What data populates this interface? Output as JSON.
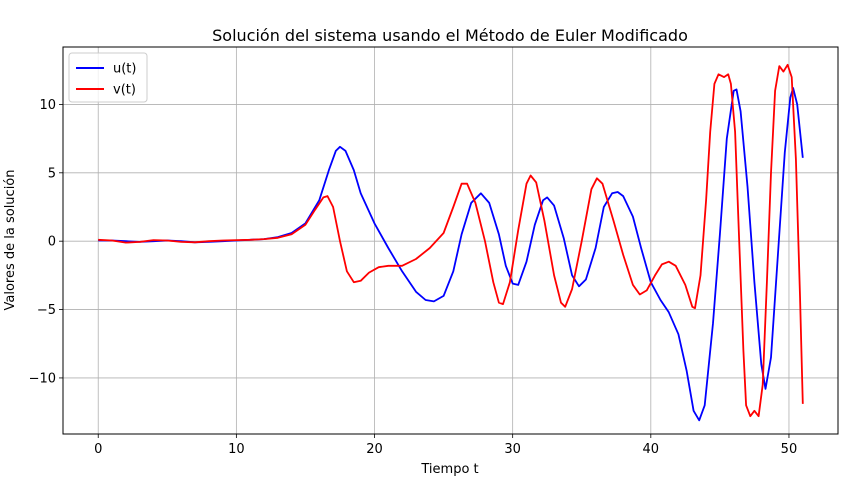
{
  "chart_data": {
    "type": "line",
    "title": "Solución del sistema usando el Método de Euler Modificado",
    "xlabel": "Tiempo t",
    "ylabel": "Valores de la solución",
    "xlim": [
      -2.55,
      53.55
    ],
    "ylim": [
      -14.1,
      14.2
    ],
    "xticks": [
      0,
      10,
      20,
      30,
      40,
      50
    ],
    "yticks": [
      -10,
      -5,
      0,
      5,
      10
    ],
    "ytick_labels": [
      "−10",
      "−5",
      "0",
      "5",
      "10"
    ],
    "grid": true,
    "legend_position": "top-left",
    "series": [
      {
        "name": "u(t)",
        "color": "#0000ff",
        "points": [
          [
            0,
            0.05
          ],
          [
            1,
            0.05
          ],
          [
            2,
            0.0
          ],
          [
            3,
            -0.05
          ],
          [
            4,
            0.0
          ],
          [
            5,
            0.05
          ],
          [
            6,
            0.0
          ],
          [
            7,
            -0.08
          ],
          [
            8,
            -0.05
          ],
          [
            9,
            0.0
          ],
          [
            10,
            0.05
          ],
          [
            11,
            0.1
          ],
          [
            12,
            0.15
          ],
          [
            13,
            0.3
          ],
          [
            14,
            0.6
          ],
          [
            15,
            1.3
          ],
          [
            16,
            3.0
          ],
          [
            16.7,
            5.2
          ],
          [
            17.2,
            6.6
          ],
          [
            17.5,
            6.9
          ],
          [
            17.9,
            6.6
          ],
          [
            18.5,
            5.2
          ],
          [
            19,
            3.5
          ],
          [
            20,
            1.3
          ],
          [
            21,
            -0.5
          ],
          [
            22,
            -2.2
          ],
          [
            23,
            -3.7
          ],
          [
            23.7,
            -4.3
          ],
          [
            24.3,
            -4.4
          ],
          [
            25,
            -4.0
          ],
          [
            25.7,
            -2.2
          ],
          [
            26.3,
            0.5
          ],
          [
            27,
            2.8
          ],
          [
            27.7,
            3.5
          ],
          [
            28.3,
            2.8
          ],
          [
            29,
            0.5
          ],
          [
            29.5,
            -1.8
          ],
          [
            30,
            -3.1
          ],
          [
            30.4,
            -3.2
          ],
          [
            31,
            -1.5
          ],
          [
            31.6,
            1.2
          ],
          [
            32.2,
            3.0
          ],
          [
            32.5,
            3.2
          ],
          [
            33,
            2.6
          ],
          [
            33.7,
            0.2
          ],
          [
            34.3,
            -2.5
          ],
          [
            34.8,
            -3.3
          ],
          [
            35.3,
            -2.8
          ],
          [
            36,
            -0.5
          ],
          [
            36.6,
            2.5
          ],
          [
            37.2,
            3.5
          ],
          [
            37.6,
            3.6
          ],
          [
            38,
            3.3
          ],
          [
            38.7,
            1.8
          ],
          [
            39.3,
            -0.5
          ],
          [
            40,
            -3.0
          ],
          [
            40.7,
            -4.3
          ],
          [
            41.3,
            -5.2
          ],
          [
            42,
            -6.8
          ],
          [
            42.6,
            -9.5
          ],
          [
            43.1,
            -12.4
          ],
          [
            43.5,
            -13.1
          ],
          [
            43.9,
            -12.0
          ],
          [
            44.5,
            -6.0
          ],
          [
            45,
            0.5
          ],
          [
            45.5,
            7.5
          ],
          [
            46,
            11.0
          ],
          [
            46.2,
            11.1
          ],
          [
            46.5,
            9.5
          ],
          [
            47,
            4.0
          ],
          [
            47.5,
            -3.0
          ],
          [
            48,
            -9.0
          ],
          [
            48.3,
            -10.8
          ],
          [
            48.7,
            -8.5
          ],
          [
            49.2,
            -1.0
          ],
          [
            49.7,
            6.5
          ],
          [
            50.1,
            10.5
          ],
          [
            50.3,
            11.2
          ],
          [
            50.6,
            10.0
          ],
          [
            51,
            6.1
          ]
        ]
      },
      {
        "name": "v(t)",
        "color": "#ff0000",
        "points": [
          [
            0,
            0.1
          ],
          [
            1,
            0.05
          ],
          [
            2,
            -0.1
          ],
          [
            3,
            -0.05
          ],
          [
            4,
            0.08
          ],
          [
            5,
            0.05
          ],
          [
            6,
            -0.05
          ],
          [
            7,
            -0.08
          ],
          [
            8,
            0.0
          ],
          [
            9,
            0.05
          ],
          [
            10,
            0.08
          ],
          [
            11,
            0.1
          ],
          [
            12,
            0.15
          ],
          [
            13,
            0.25
          ],
          [
            14,
            0.5
          ],
          [
            15,
            1.2
          ],
          [
            15.7,
            2.3
          ],
          [
            16.3,
            3.2
          ],
          [
            16.6,
            3.3
          ],
          [
            17,
            2.5
          ],
          [
            17.5,
            0.0
          ],
          [
            18,
            -2.2
          ],
          [
            18.5,
            -3.0
          ],
          [
            19,
            -2.9
          ],
          [
            19.6,
            -2.3
          ],
          [
            20.3,
            -1.9
          ],
          [
            21,
            -1.8
          ],
          [
            22,
            -1.8
          ],
          [
            23,
            -1.3
          ],
          [
            24,
            -0.5
          ],
          [
            25,
            0.6
          ],
          [
            25.7,
            2.5
          ],
          [
            26.3,
            4.2
          ],
          [
            26.7,
            4.2
          ],
          [
            27.3,
            2.8
          ],
          [
            28,
            0.0
          ],
          [
            28.6,
            -3.0
          ],
          [
            29,
            -4.5
          ],
          [
            29.3,
            -4.6
          ],
          [
            29.8,
            -3.0
          ],
          [
            30.4,
            0.8
          ],
          [
            31,
            4.2
          ],
          [
            31.3,
            4.8
          ],
          [
            31.7,
            4.3
          ],
          [
            32.3,
            1.5
          ],
          [
            33,
            -2.5
          ],
          [
            33.5,
            -4.5
          ],
          [
            33.8,
            -4.8
          ],
          [
            34.3,
            -3.5
          ],
          [
            35,
            0.0
          ],
          [
            35.7,
            3.8
          ],
          [
            36.1,
            4.6
          ],
          [
            36.5,
            4.2
          ],
          [
            37.3,
            1.5
          ],
          [
            38,
            -1.0
          ],
          [
            38.7,
            -3.2
          ],
          [
            39.2,
            -3.9
          ],
          [
            39.7,
            -3.6
          ],
          [
            40.3,
            -2.5
          ],
          [
            40.8,
            -1.7
          ],
          [
            41.3,
            -1.5
          ],
          [
            41.8,
            -1.8
          ],
          [
            42.5,
            -3.2
          ],
          [
            43,
            -4.8
          ],
          [
            43.2,
            -4.9
          ],
          [
            43.6,
            -2.5
          ],
          [
            44,
            3.0
          ],
          [
            44.3,
            8.0
          ],
          [
            44.6,
            11.5
          ],
          [
            44.9,
            12.2
          ],
          [
            45.3,
            12.0
          ],
          [
            45.6,
            12.2
          ],
          [
            45.8,
            11.5
          ],
          [
            46.1,
            8.0
          ],
          [
            46.4,
            0.0
          ],
          [
            46.7,
            -8.0
          ],
          [
            46.9,
            -12.0
          ],
          [
            47.2,
            -12.8
          ],
          [
            47.5,
            -12.4
          ],
          [
            47.8,
            -12.8
          ],
          [
            48.1,
            -10.5
          ],
          [
            48.4,
            -3.0
          ],
          [
            48.7,
            5.0
          ],
          [
            49,
            11.0
          ],
          [
            49.3,
            12.8
          ],
          [
            49.6,
            12.4
          ],
          [
            49.9,
            12.9
          ],
          [
            50.2,
            12.0
          ],
          [
            50.5,
            6.0
          ],
          [
            50.8,
            -4.0
          ],
          [
            51,
            -11.9
          ]
        ]
      }
    ]
  }
}
